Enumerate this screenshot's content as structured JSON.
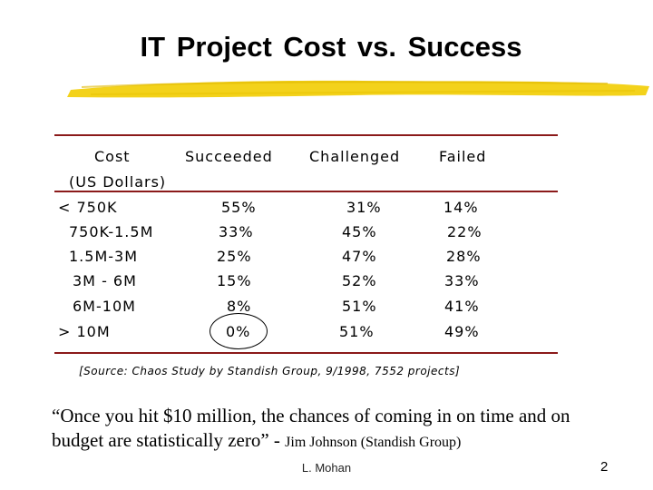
{
  "slide": {
    "title": "IT  Project  Cost vs. Success",
    "headers": {
      "cost": "Cost",
      "cost_sub": "(US Dollars)",
      "succeeded": "Succeeded",
      "challenged": "Challenged",
      "failed": "Failed"
    },
    "rows": [
      {
        "cost": "< 750K",
        "succeeded": "55%",
        "challenged": "31%",
        "failed": "14%"
      },
      {
        "cost": "750K-1.5M",
        "succeeded": "33%",
        "challenged": "45%",
        "failed": "22%"
      },
      {
        "cost": "1.5M-3M",
        "succeeded": "25%",
        "challenged": "47%",
        "failed": "28%"
      },
      {
        "cost": "3M - 6M",
        "succeeded": "15%",
        "challenged": "52%",
        "failed": "33%"
      },
      {
        "cost": "6M-10M",
        "succeeded": "8%",
        "challenged": "51%",
        "failed": "41%"
      },
      {
        "cost": "> 10M",
        "succeeded": "0%",
        "challenged": "51%",
        "failed": "49%"
      }
    ],
    "source": "[Source: Chaos Study by Standish Group, 9/1998, 7552 projects]",
    "quote": "“Once you hit $10 million, the chances of coming in on time and on budget are statistically zero” - ",
    "quote_attribution": "Jim Johnson (Standish Group)",
    "footer": "L. Mohan",
    "page_number": "2"
  },
  "colors": {
    "brush": "#f3d21b",
    "rule": "#8b1a1a"
  }
}
